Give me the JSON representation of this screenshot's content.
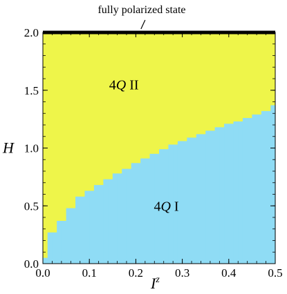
{
  "chart_data": {
    "type": "area",
    "xlabel": "I",
    "xlabel_superscript": "z",
    "ylabel": "H",
    "xlim": [
      0,
      0.5
    ],
    "ylim": [
      0,
      2.0
    ],
    "x_ticks": [
      "0.0",
      "0.1",
      "0.2",
      "0.3",
      "0.4",
      "0.5"
    ],
    "y_ticks": [
      "0.0",
      "0.5",
      "1.0",
      "1.5",
      "2.0"
    ],
    "x_tick_values": [
      0,
      0.1,
      0.2,
      0.3,
      0.4,
      0.5
    ],
    "y_tick_values": [
      0,
      0.5,
      1.0,
      1.5,
      2.0
    ],
    "grid": false,
    "regions": [
      {
        "label_main": "4",
        "label_italic": "Q",
        "label_suffix": " II",
        "color": "#eef54a",
        "label_x": 0.15,
        "label_y": 1.55
      },
      {
        "label_main": "4",
        "label_italic": "Q",
        "label_suffix": " I",
        "color": "#8fdcf5",
        "label_x": 0.27,
        "label_y": 0.5
      }
    ],
    "boundary_step_width": 0.01,
    "boundary": {
      "x": [
        0.005,
        0.015,
        0.025,
        0.035,
        0.045,
        0.055,
        0.065,
        0.075,
        0.085,
        0.095,
        0.105,
        0.115,
        0.125,
        0.135,
        0.145,
        0.155,
        0.165,
        0.175,
        0.185,
        0.195,
        0.205,
        0.215,
        0.225,
        0.235,
        0.245,
        0.255,
        0.265,
        0.275,
        0.285,
        0.295,
        0.305,
        0.315,
        0.325,
        0.335,
        0.345,
        0.355,
        0.365,
        0.375,
        0.385,
        0.395,
        0.405,
        0.415,
        0.425,
        0.435,
        0.445,
        0.455,
        0.465,
        0.475,
        0.485,
        0.495
      ],
      "y": [
        0.05,
        0.27,
        0.27,
        0.37,
        0.37,
        0.48,
        0.48,
        0.58,
        0.58,
        0.63,
        0.63,
        0.68,
        0.68,
        0.73,
        0.73,
        0.78,
        0.78,
        0.82,
        0.82,
        0.87,
        0.87,
        0.91,
        0.91,
        0.95,
        0.95,
        0.99,
        0.99,
        1.03,
        1.03,
        1.06,
        1.06,
        1.09,
        1.09,
        1.12,
        1.12,
        1.15,
        1.15,
        1.18,
        1.18,
        1.21,
        1.21,
        1.23,
        1.23,
        1.26,
        1.26,
        1.29,
        1.29,
        1.32,
        1.32,
        1.37
      ]
    },
    "top_line": {
      "y": 2.0,
      "color": "#000000"
    },
    "annotation": {
      "text": "fully polarized state",
      "points_to_x": 0.22,
      "points_to_y": 2.0
    }
  }
}
